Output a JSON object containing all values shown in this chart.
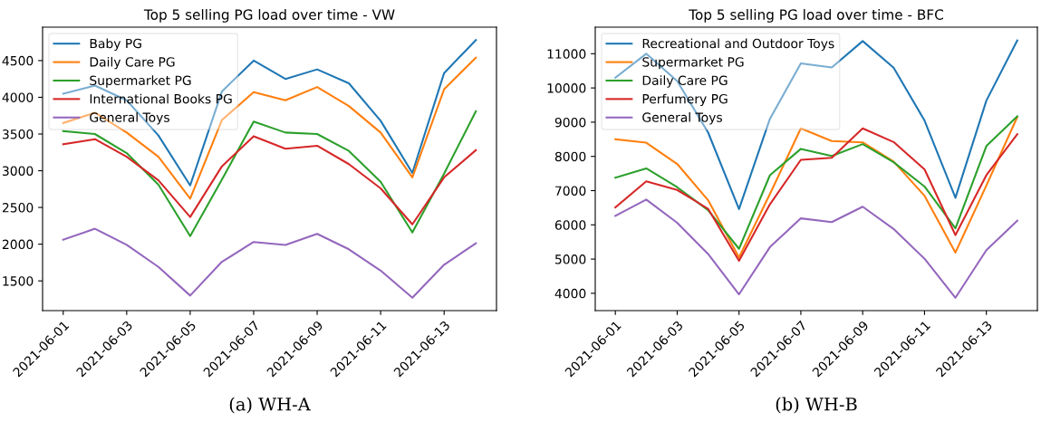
{
  "chart_data": [
    {
      "type": "line",
      "title": "Top 5 selling PG load over time - VW",
      "x": [
        "2021-06-01",
        "2021-06-02",
        "2021-06-03",
        "2021-06-04",
        "2021-06-05",
        "2021-06-06",
        "2021-06-07",
        "2021-06-08",
        "2021-06-09",
        "2021-06-10",
        "2021-06-11",
        "2021-06-12",
        "2021-06-13",
        "2021-06-14"
      ],
      "series": [
        {
          "name": "Baby PG",
          "color": "#1f77b4",
          "values": [
            4050,
            4160,
            3960,
            3480,
            2800,
            4080,
            4500,
            4250,
            4380,
            4190,
            3680,
            2970,
            4330,
            4780
          ]
        },
        {
          "name": "Daily Care PG",
          "color": "#ff7f0e",
          "values": [
            3650,
            3790,
            3520,
            3190,
            2620,
            3690,
            4070,
            3960,
            4140,
            3880,
            3520,
            2910,
            4110,
            4540
          ]
        },
        {
          "name": "Supermarket PG",
          "color": "#2ca02c",
          "values": [
            3540,
            3500,
            3240,
            2810,
            2110,
            2880,
            3670,
            3520,
            3500,
            3270,
            2850,
            2160,
            2960,
            3810
          ]
        },
        {
          "name": "International Books PG",
          "color": "#d62728",
          "values": [
            3360,
            3430,
            3190,
            2870,
            2370,
            3060,
            3470,
            3300,
            3340,
            3090,
            2760,
            2270,
            2910,
            3280
          ]
        },
        {
          "name": "General Toys",
          "color": "#9467bd",
          "values": [
            2060,
            2210,
            1990,
            1690,
            1300,
            1760,
            2030,
            1990,
            2140,
            1930,
            1640,
            1270,
            1720,
            2010
          ]
        }
      ],
      "xlim": [
        "2021-05-31T08:24",
        "2021-06-14T15:36"
      ],
      "xticks": [
        "2021-06-01",
        "2021-06-03",
        "2021-06-05",
        "2021-06-07",
        "2021-06-09",
        "2021-06-11",
        "2021-06-13"
      ],
      "ylim": [
        1095,
        4955
      ],
      "yticks": [
        1500,
        2000,
        2500,
        3000,
        3500,
        4000,
        4500
      ],
      "legend": "top left",
      "grid": false,
      "annotations": [
        "(a) WH-A"
      ]
    },
    {
      "type": "line",
      "title": "Top 5 selling PG load over time - BFC",
      "x": [
        "2021-06-01",
        "2021-06-02",
        "2021-06-03",
        "2021-06-04",
        "2021-06-05",
        "2021-06-06",
        "2021-06-07",
        "2021-06-08",
        "2021-06-09",
        "2021-06-10",
        "2021-06-11",
        "2021-06-12",
        "2021-06-13",
        "2021-06-14"
      ],
      "series": [
        {
          "name": "Recreational and Outdoor Toys",
          "color": "#1f77b4",
          "values": [
            10300,
            11000,
            10200,
            8700,
            6460,
            9100,
            10720,
            10600,
            11370,
            10590,
            9050,
            6790,
            9630,
            11390
          ]
        },
        {
          "name": "Supermarket PG",
          "color": "#ff7f0e",
          "values": [
            8500,
            8400,
            7780,
            6720,
            5050,
            6900,
            8820,
            8450,
            8410,
            7850,
            6850,
            5190,
            7150,
            9150
          ]
        },
        {
          "name": "Daily Care PG",
          "color": "#2ca02c",
          "values": [
            7380,
            7650,
            7100,
            6430,
            5300,
            7450,
            8220,
            8010,
            8360,
            7830,
            7120,
            5900,
            8300,
            9170
          ]
        },
        {
          "name": "Perfumery PG",
          "color": "#d62728",
          "values": [
            6510,
            7270,
            7020,
            6470,
            4950,
            6600,
            7900,
            7960,
            8820,
            8420,
            7620,
            5700,
            7450,
            8650
          ]
        },
        {
          "name": "General Toys",
          "color": "#9467bd",
          "values": [
            6260,
            6740,
            6060,
            5150,
            3970,
            5350,
            6190,
            6080,
            6530,
            5880,
            5010,
            3870,
            5260,
            6120
          ]
        }
      ],
      "xlim": [
        "2021-05-31T08:24",
        "2021-06-14T15:36"
      ],
      "xticks": [
        "2021-06-01",
        "2021-06-03",
        "2021-06-05",
        "2021-06-07",
        "2021-06-09",
        "2021-06-11",
        "2021-06-13"
      ],
      "ylim": [
        3494,
        11776
      ],
      "yticks": [
        4000,
        5000,
        6000,
        7000,
        8000,
        9000,
        10000,
        11000
      ],
      "legend": "top left",
      "grid": false,
      "annotations": [
        "(b) WH-B"
      ]
    }
  ]
}
